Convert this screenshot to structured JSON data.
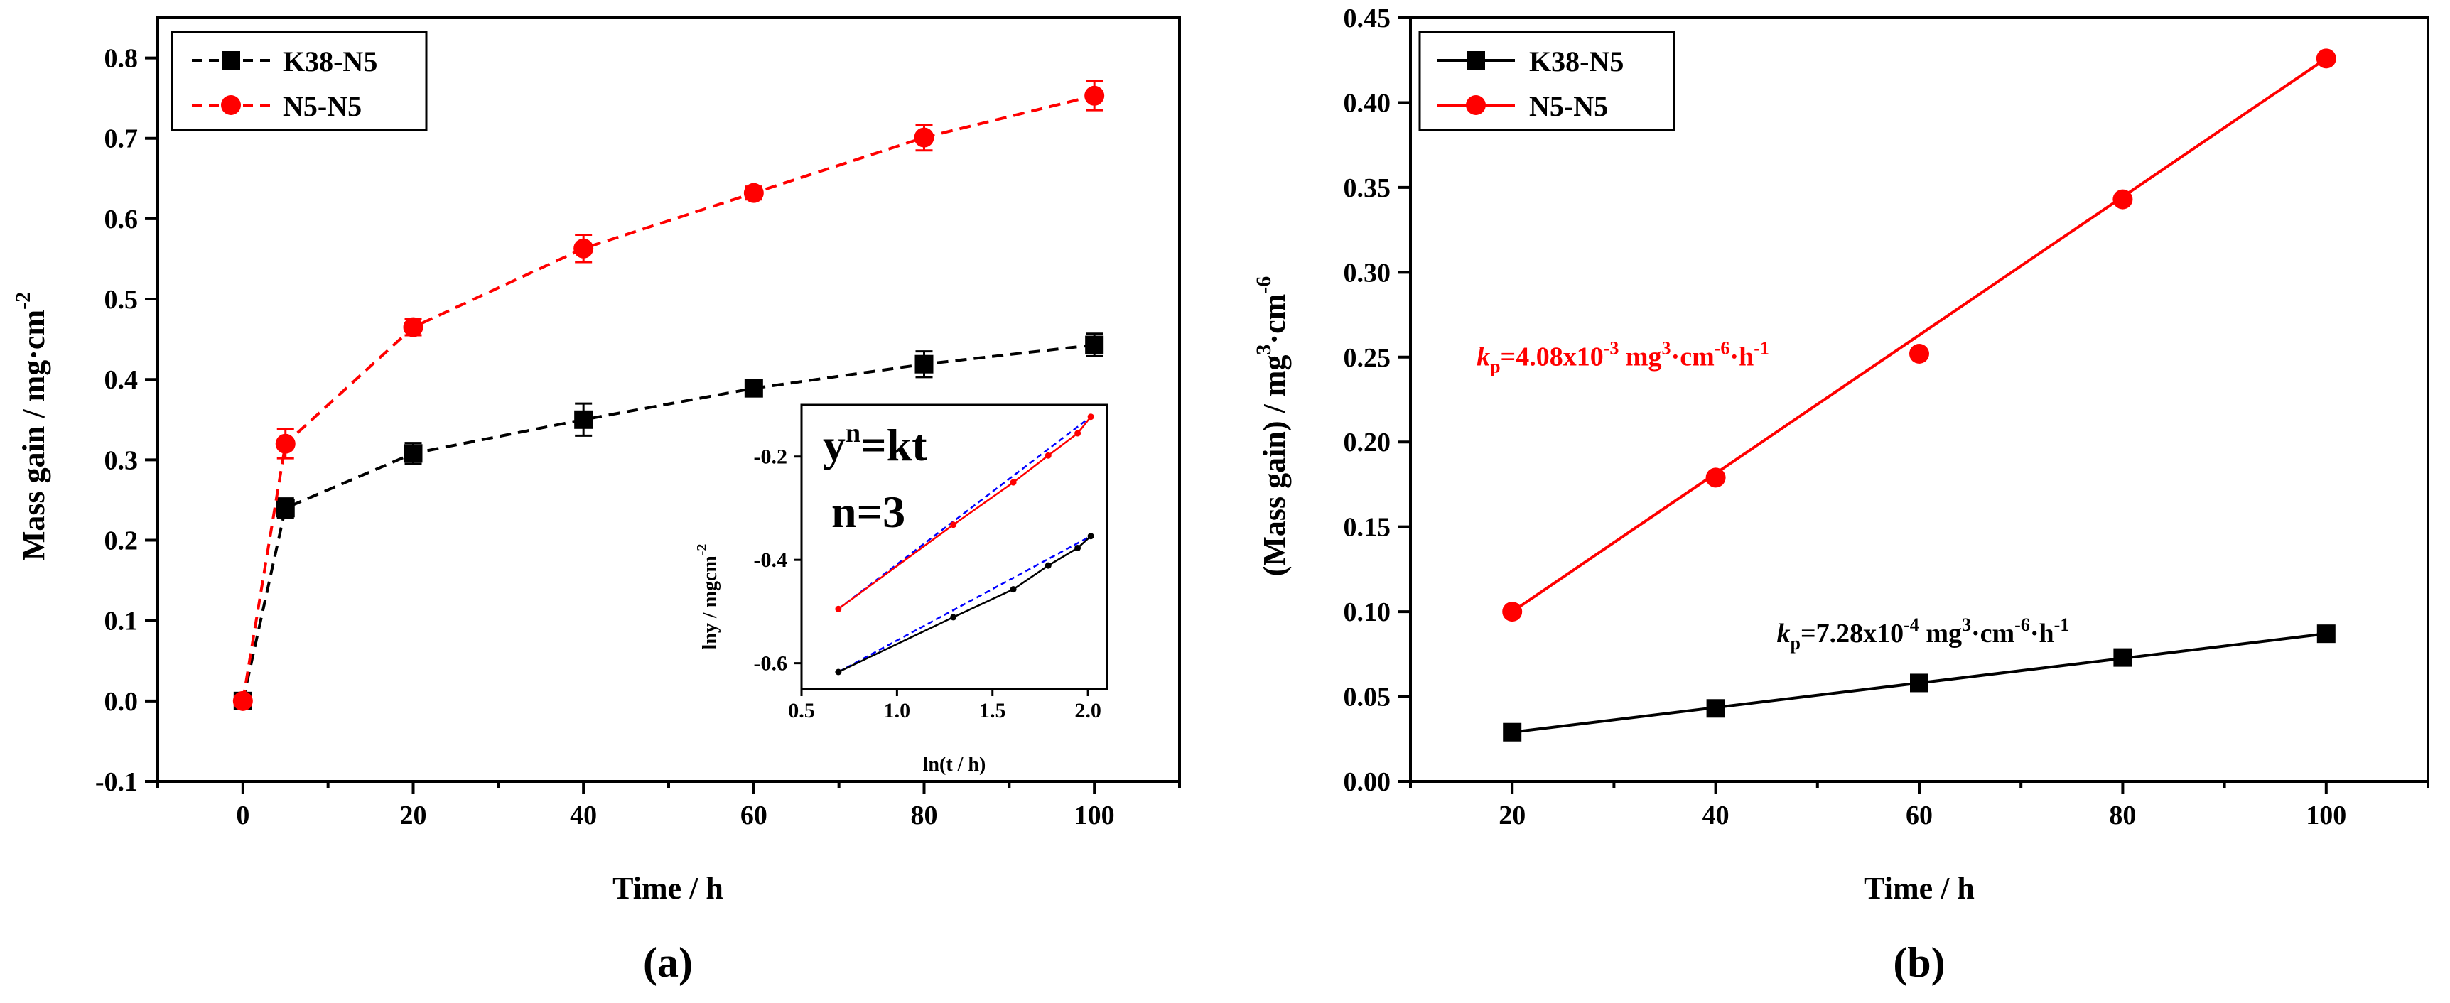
{
  "chart_data": [
    {
      "type": "line",
      "panel_label": "(a)",
      "xlabel": "Time / h",
      "ylabel": "Mass gain / mg·cm",
      "ylabel_sup": "-2",
      "xlim": [
        -10,
        110
      ],
      "ylim": [
        -0.1,
        0.85
      ],
      "xticks": [
        0,
        20,
        40,
        60,
        80,
        100
      ],
      "yticks": [
        -0.1,
        0.0,
        0.1,
        0.2,
        0.3,
        0.4,
        0.5,
        0.6,
        0.7,
        0.8
      ],
      "legend_position": "top-left",
      "series": [
        {
          "name": "K38-N5",
          "color": "#000000",
          "marker": "square",
          "line": "dashed",
          "x": [
            0,
            5,
            20,
            40,
            60,
            80,
            100
          ],
          "y": [
            0.0,
            0.24,
            0.308,
            0.35,
            0.389,
            0.419,
            0.443
          ],
          "err": [
            0.004,
            0.012,
            0.013,
            0.02,
            0.009,
            0.016,
            0.014
          ]
        },
        {
          "name": "N5-N5",
          "color": "#ff0000",
          "marker": "circle",
          "line": "dashed",
          "x": [
            0,
            5,
            20,
            40,
            60,
            80,
            100
          ],
          "y": [
            0.0,
            0.32,
            0.465,
            0.563,
            0.632,
            0.701,
            0.753
          ],
          "err": [
            0.004,
            0.018,
            0.01,
            0.017,
            0.008,
            0.016,
            0.018
          ]
        }
      ],
      "inset": {
        "equation": "y",
        "equation_sup": "n",
        "equation_rest": "=kt",
        "n_label": "n=3",
        "xlabel": "ln(t / h)",
        "ylabel": "lny / mgcm",
        "ylabel_sup": "-2",
        "xlim": [
          0.5,
          2.1
        ],
        "ylim": [
          -0.65,
          -0.1
        ],
        "xticks": [
          0.5,
          1.0,
          1.5,
          2.0
        ],
        "yticks": [
          -0.6,
          -0.4,
          -0.2
        ],
        "series": [
          {
            "color": "#000000",
            "x": [
              0.693,
              1.295,
              1.609,
              1.792,
              1.946,
              2.015
            ],
            "y": [
              -0.617,
              -0.511,
              -0.457,
              -0.411,
              -0.377,
              -0.354
            ],
            "fit_color": "#0000ff"
          },
          {
            "color": "#ff0000",
            "x": [
              0.693,
              1.295,
              1.609,
              1.792,
              1.946,
              2.015
            ],
            "y": [
              -0.495,
              -0.332,
              -0.25,
              -0.198,
              -0.155,
              -0.123
            ],
            "fit_color": "#0000ff"
          }
        ]
      }
    },
    {
      "type": "line",
      "panel_label": "(b)",
      "xlabel": "Time / h",
      "ylabel": "(Mass gain) / mg",
      "ylabel_sup1": "3",
      "ylabel_mid": "·cm",
      "ylabel_sup2": "-6",
      "xlim": [
        10,
        110
      ],
      "ylim": [
        0.0,
        0.45
      ],
      "xticks": [
        20,
        40,
        60,
        80,
        100
      ],
      "yticks": [
        0.0,
        0.05,
        0.1,
        0.15,
        0.2,
        0.25,
        0.3,
        0.35,
        0.4,
        0.45
      ],
      "legend_position": "top-left",
      "series": [
        {
          "name": "K38-N5",
          "color": "#000000",
          "marker": "square",
          "line": "solid",
          "x": [
            20,
            40,
            60,
            80,
            100
          ],
          "y": [
            0.029,
            0.043,
            0.058,
            0.073,
            0.087
          ]
        },
        {
          "name": "N5-N5",
          "color": "#ff0000",
          "marker": "circle",
          "line": "solid",
          "x": [
            20,
            40,
            60,
            80,
            100
          ],
          "y": [
            0.1,
            0.179,
            0.252,
            0.343,
            0.426
          ]
        }
      ],
      "annotations": [
        {
          "k": "k",
          "sub": "p",
          "text": "=4.08x10",
          "exp": "-3",
          "unit": " mg",
          "unit_sup": "3",
          "unit2": "·cm",
          "unit2_sup": "-6",
          "unit3": "·h",
          "unit3_sup": "-1",
          "color": "#ff0000",
          "at_x": 16.5,
          "at_y": 0.245
        },
        {
          "k": "k",
          "sub": "p",
          "text": "=7.28x10",
          "exp": "-4",
          "unit": " mg",
          "unit_sup": "3",
          "unit2": "·cm",
          "unit2_sup": "-6",
          "unit3": "·h",
          "unit3_sup": "-1",
          "color": "#000000",
          "at_x": 46,
          "at_y": 0.082
        }
      ]
    }
  ]
}
